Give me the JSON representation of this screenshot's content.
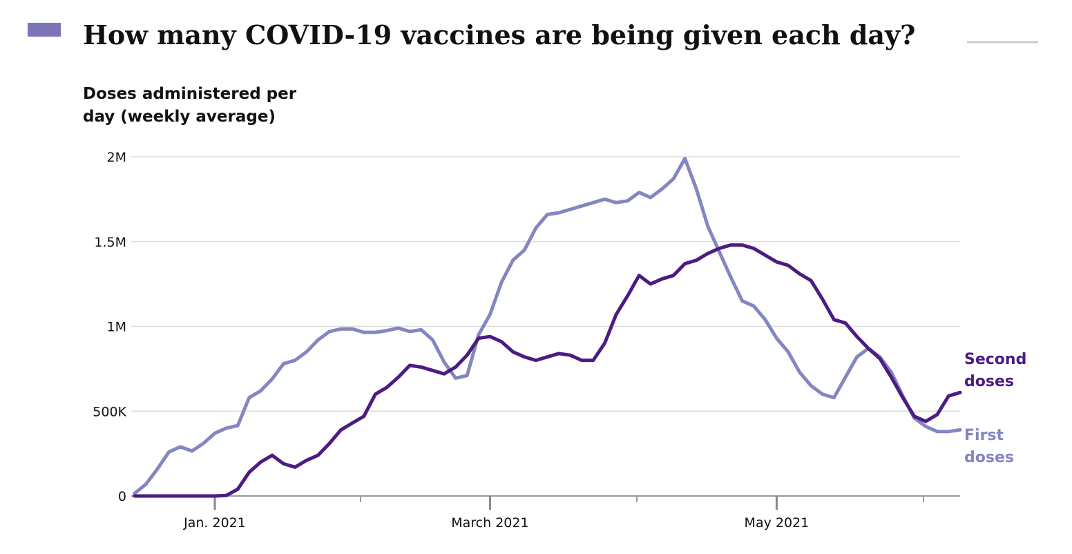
{
  "chart_data": {
    "type": "line",
    "title": "How many COVID-19 vaccines are being given each day?",
    "y_label": "Doses administered per day (weekly average)",
    "categories": [
      null,
      null,
      null,
      null,
      null,
      null,
      null,
      "Jan. 2021",
      null,
      null,
      null,
      null,
      null,
      null,
      null,
      null,
      null,
      null,
      null,
      null,
      null,
      null,
      null,
      null,
      null,
      null,
      null,
      null,
      null,
      null,
      null,
      "March 2021",
      null,
      null,
      null,
      null,
      null,
      null,
      null,
      null,
      null,
      null,
      null,
      null,
      null,
      null,
      null,
      null,
      null,
      null,
      null,
      null,
      null,
      null,
      null,
      null,
      "May 2021",
      null,
      null,
      null,
      null,
      null,
      null,
      null,
      null,
      null,
      null,
      null,
      null,
      null,
      null,
      null,
      null
    ],
    "series": [
      {
        "name": "First doses",
        "color": "#8386c0",
        "values": [
          15000,
          70000,
          160000,
          260000,
          290000,
          265000,
          310000,
          370000,
          400000,
          415000,
          580000,
          620000,
          690000,
          780000,
          800000,
          850000,
          920000,
          970000,
          985000,
          985000,
          965000,
          965000,
          975000,
          990000,
          970000,
          980000,
          920000,
          790000,
          695000,
          710000,
          950000,
          1070000,
          1260000,
          1390000,
          1450000,
          1580000,
          1660000,
          1670000,
          1690000,
          1710000,
          1730000,
          1750000,
          1730000,
          1740000,
          1790000,
          1760000,
          1810000,
          1870000,
          1990000,
          1810000,
          1590000,
          1440000,
          1290000,
          1150000,
          1120000,
          1040000,
          930000,
          850000,
          730000,
          650000,
          600000,
          580000,
          700000,
          820000,
          870000,
          820000,
          730000,
          590000,
          460000,
          410000,
          380000,
          380000,
          390000
        ]
      },
      {
        "name": "Second doses",
        "color": "#4b1c82",
        "values": [
          0,
          0,
          0,
          0,
          0,
          0,
          0,
          0,
          3000,
          40000,
          140000,
          200000,
          240000,
          190000,
          170000,
          210000,
          240000,
          310000,
          390000,
          430000,
          470000,
          600000,
          640000,
          700000,
          770000,
          760000,
          740000,
          720000,
          760000,
          830000,
          930000,
          940000,
          910000,
          850000,
          820000,
          800000,
          820000,
          840000,
          830000,
          800000,
          800000,
          900000,
          1070000,
          1180000,
          1300000,
          1250000,
          1280000,
          1300000,
          1370000,
          1390000,
          1430000,
          1460000,
          1480000,
          1480000,
          1460000,
          1420000,
          1380000,
          1360000,
          1310000,
          1270000,
          1160000,
          1040000,
          1020000,
          940000,
          870000,
          810000,
          700000,
          580000,
          470000,
          440000,
          480000,
          590000,
          610000
        ]
      }
    ],
    "ylim": [
      0,
      2000000
    ],
    "yticks": [
      0,
      {
        "value": 500000,
        "label": "500K"
      },
      {
        "value": 1000000,
        "label": "1M"
      },
      {
        "value": 1500000,
        "label": "1.5M"
      },
      {
        "value": 2000000,
        "label": "2M"
      }
    ],
    "grid": true
  }
}
